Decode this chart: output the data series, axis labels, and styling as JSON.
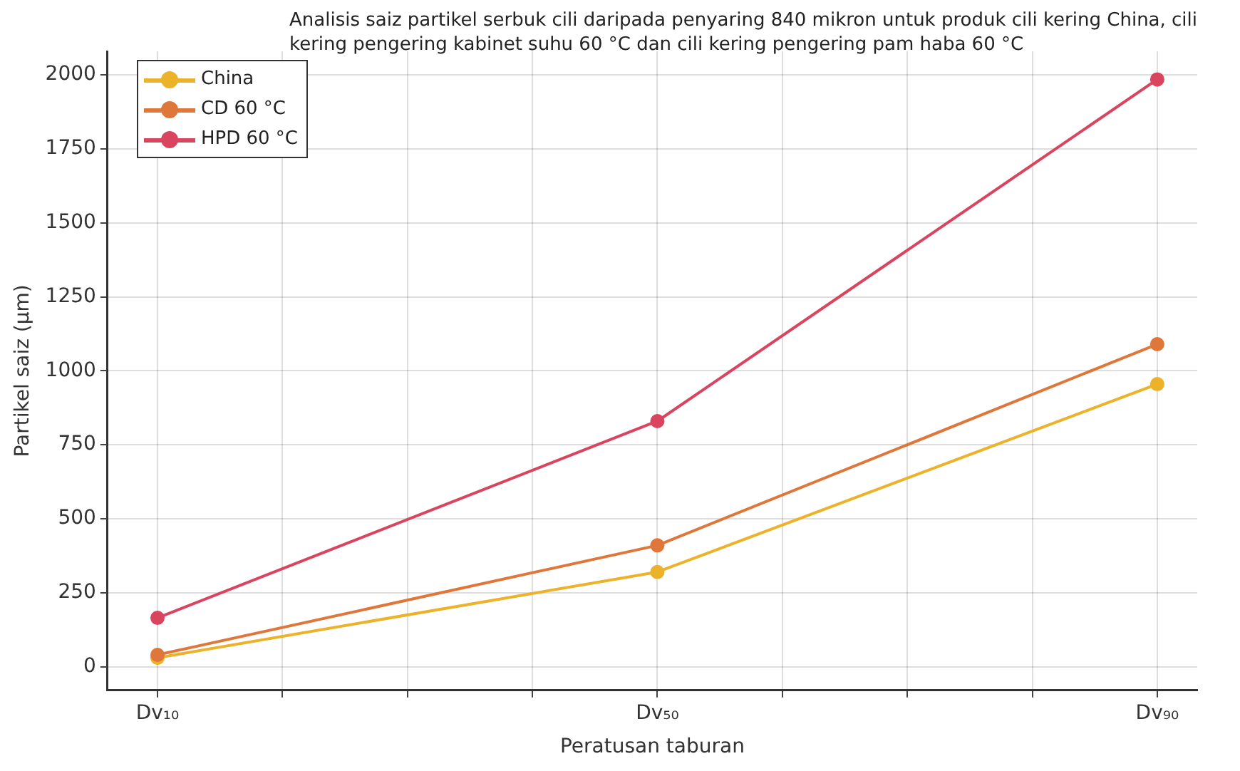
{
  "chart_data": {
    "type": "line",
    "title": "Analisis saiz partikel serbuk cili daripada penyaring 840 mikron untuk produk cili kering China, cili kering pengering kabinet suhu 60 °C dan cili kering pengering pam haba 60 °C",
    "xlabel": "Peratusan taburan",
    "ylabel": "Partikel saiz (µm)",
    "categories": [
      "Dv₁₀",
      "Dv₅₀",
      "Dv₉₀"
    ],
    "series": [
      {
        "name": "China",
        "color": "#ebb22a",
        "values": [
          30,
          320,
          955
        ]
      },
      {
        "name": "CD 60 °C",
        "color": "#e0773a",
        "values": [
          40,
          410,
          1090
        ]
      },
      {
        "name": "HPD 60 °C",
        "color": "#d9445f",
        "values": [
          165,
          830,
          1985
        ]
      }
    ],
    "ylim": [
      -80,
      2080
    ],
    "yticks": [
      0,
      250,
      500,
      750,
      1000,
      1250,
      1500,
      1750,
      2000
    ],
    "grid": true,
    "legend": "top left",
    "marker": "circle",
    "line_style": "solid"
  }
}
